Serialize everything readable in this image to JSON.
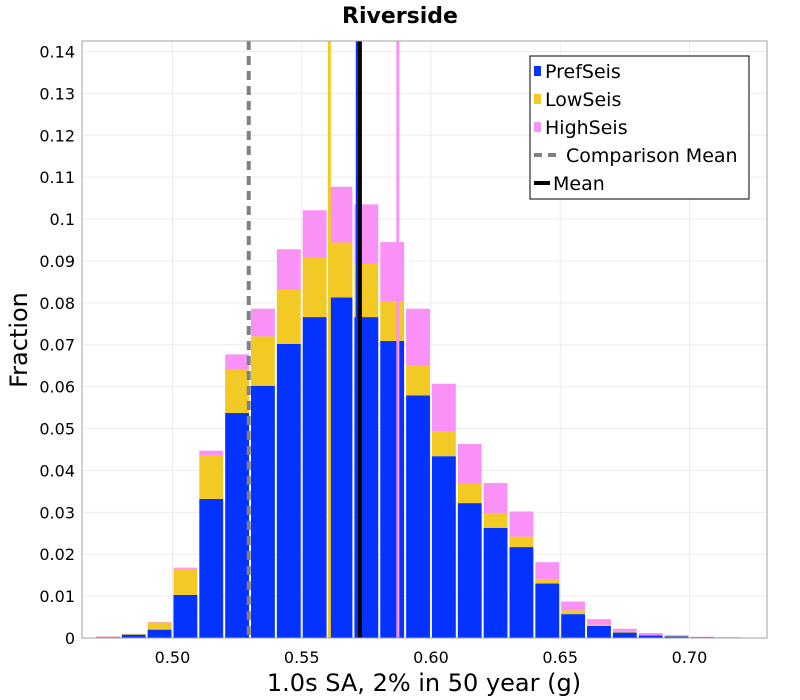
{
  "chart_data": {
    "type": "bar",
    "stacked": true,
    "title": "Riverside",
    "xlabel": "1.0s SA, 2% in 50 year (g)",
    "ylabel": "Fraction",
    "xlim": [
      0.465,
      0.73
    ],
    "ylim": [
      0,
      0.1425
    ],
    "bin_width": 0.01,
    "x_ticks": [
      {
        "value": 0.5,
        "label": "0.50"
      },
      {
        "value": 0.55,
        "label": "0.55"
      },
      {
        "value": 0.6,
        "label": "0.60"
      },
      {
        "value": 0.65,
        "label": "0.65"
      },
      {
        "value": 0.7,
        "label": "0.70"
      }
    ],
    "y_ticks": [
      {
        "value": 0,
        "label": "0"
      },
      {
        "value": 0.01,
        "label": "0.01"
      },
      {
        "value": 0.02,
        "label": "0.02"
      },
      {
        "value": 0.03,
        "label": "0.03"
      },
      {
        "value": 0.04,
        "label": "0.04"
      },
      {
        "value": 0.05,
        "label": "0.05"
      },
      {
        "value": 0.06,
        "label": "0.06"
      },
      {
        "value": 0.07,
        "label": "0.07"
      },
      {
        "value": 0.08,
        "label": "0.08"
      },
      {
        "value": 0.09,
        "label": "0.09"
      },
      {
        "value": 0.1,
        "label": "0.1"
      },
      {
        "value": 0.11,
        "label": "0.11"
      },
      {
        "value": 0.12,
        "label": "0.12"
      },
      {
        "value": 0.13,
        "label": "0.13"
      },
      {
        "value": 0.14,
        "label": "0.14"
      }
    ],
    "bin_centers": [
      0.475,
      0.485,
      0.495,
      0.505,
      0.515,
      0.525,
      0.535,
      0.545,
      0.555,
      0.565,
      0.575,
      0.585,
      0.595,
      0.605,
      0.615,
      0.625,
      0.635,
      0.645,
      0.655,
      0.665,
      0.675,
      0.685,
      0.695,
      0.705,
      0.715
    ],
    "series": [
      {
        "name": "PrefSeis",
        "color": "#0433ff",
        "values": [
          0.0002,
          0.0008,
          0.002,
          0.0103,
          0.0332,
          0.0537,
          0.0602,
          0.0702,
          0.0766,
          0.0813,
          0.0766,
          0.0709,
          0.0579,
          0.0434,
          0.0322,
          0.0263,
          0.0217,
          0.013,
          0.0057,
          0.0029,
          0.0013,
          0.0006,
          0.0004,
          0.0002,
          0.0001
        ]
      },
      {
        "name": "LowSeis",
        "color": "#f3c926",
        "values": [
          0.0001,
          0.0002,
          0.0017,
          0.0062,
          0.0103,
          0.0104,
          0.0118,
          0.0131,
          0.0141,
          0.0131,
          0.0127,
          0.0094,
          0.0071,
          0.006,
          0.0048,
          0.0034,
          0.0025,
          0.001,
          0.0009,
          0.0003,
          0.0002,
          0.0001,
          0.0001,
          0.0,
          0.0
        ]
      },
      {
        "name": "HighSeis",
        "color": "#f991f7",
        "values": [
          0.0001,
          0.0,
          0.0001,
          0.0003,
          0.0012,
          0.0036,
          0.0066,
          0.0095,
          0.0114,
          0.0133,
          0.0142,
          0.0142,
          0.0136,
          0.0113,
          0.0093,
          0.0073,
          0.006,
          0.0041,
          0.0021,
          0.0013,
          0.0007,
          0.0005,
          0.0002,
          0.0001,
          0.0001
        ]
      }
    ],
    "vertical_lines": [
      {
        "name": "PrefSeis Mean",
        "x": 0.5715,
        "color": "#0433ff",
        "style": "solid"
      },
      {
        "name": "LowSeis Mean",
        "x": 0.5607,
        "color": "#f3c926",
        "style": "solid"
      },
      {
        "name": "HighSeis Mean",
        "x": 0.5872,
        "color": "#f991f7",
        "style": "solid"
      },
      {
        "name": "Comparison Mean",
        "x": 0.5295,
        "color": "#808080",
        "style": "dashed"
      },
      {
        "name": "Mean",
        "x": 0.5725,
        "color": "#000000",
        "style": "solid"
      }
    ],
    "legend": {
      "position": "top-right",
      "entries": [
        {
          "label": "PrefSeis",
          "color": "#0433ff",
          "kind": "box"
        },
        {
          "label": "LowSeis",
          "color": "#f3c926",
          "kind": "box"
        },
        {
          "label": "HighSeis",
          "color": "#f991f7",
          "kind": "box"
        },
        {
          "label": "Comparison Mean",
          "color": "#808080",
          "kind": "dashed-line"
        },
        {
          "label": "Mean",
          "color": "#000000",
          "kind": "line"
        }
      ]
    },
    "grid": true
  }
}
